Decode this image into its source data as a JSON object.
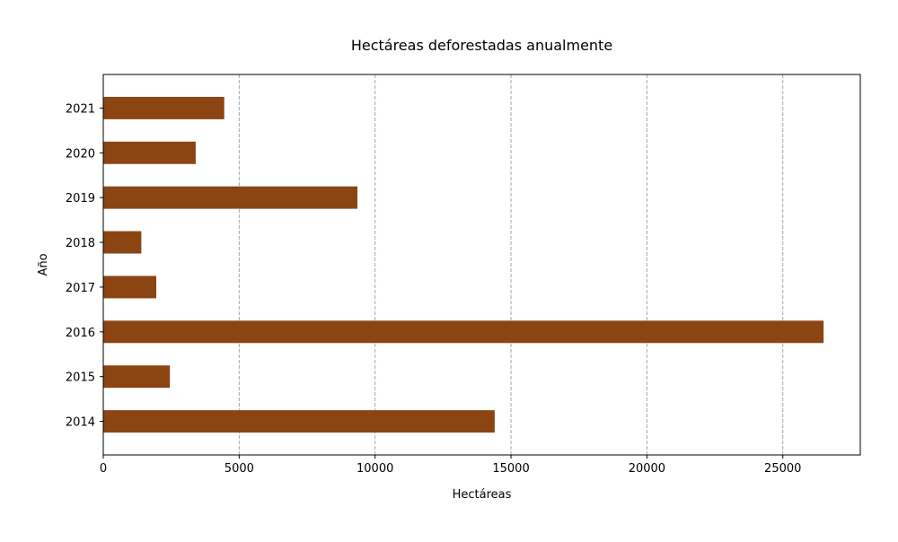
{
  "chart_data": {
    "type": "bar",
    "orientation": "horizontal",
    "title": "Hectáreas deforestadas anualmente",
    "xlabel": "Hectáreas",
    "ylabel": "Año",
    "categories": [
      "2014",
      "2015",
      "2016",
      "2017",
      "2018",
      "2019",
      "2020",
      "2021"
    ],
    "values": [
      14400,
      2450,
      26500,
      1950,
      1400,
      9350,
      3400,
      4450
    ],
    "xlim": [
      0,
      27850
    ],
    "xticks": [
      0,
      5000,
      10000,
      15000,
      20000,
      25000
    ],
    "grid": "vertical dashed",
    "bar_color": "#8b4513",
    "grid_color": "#a6a6a6"
  }
}
